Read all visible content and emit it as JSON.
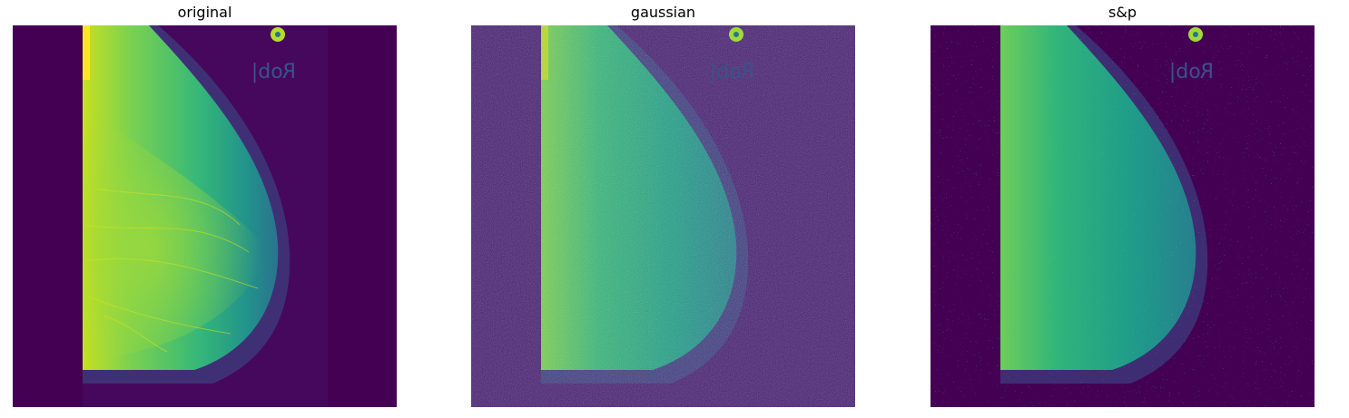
{
  "figure": {
    "panels": [
      {
        "title": "original",
        "noise": "none",
        "watermark": "Rob|"
      },
      {
        "title": "gaussian",
        "noise": "gaussian",
        "watermark": "Rob|"
      },
      {
        "title": "s&p",
        "noise": "salt-and-pepper",
        "watermark": "Rob|"
      }
    ],
    "colormap": [
      "#440154",
      "#3b528b",
      "#21918c",
      "#5ec962",
      "#fde725"
    ]
  }
}
